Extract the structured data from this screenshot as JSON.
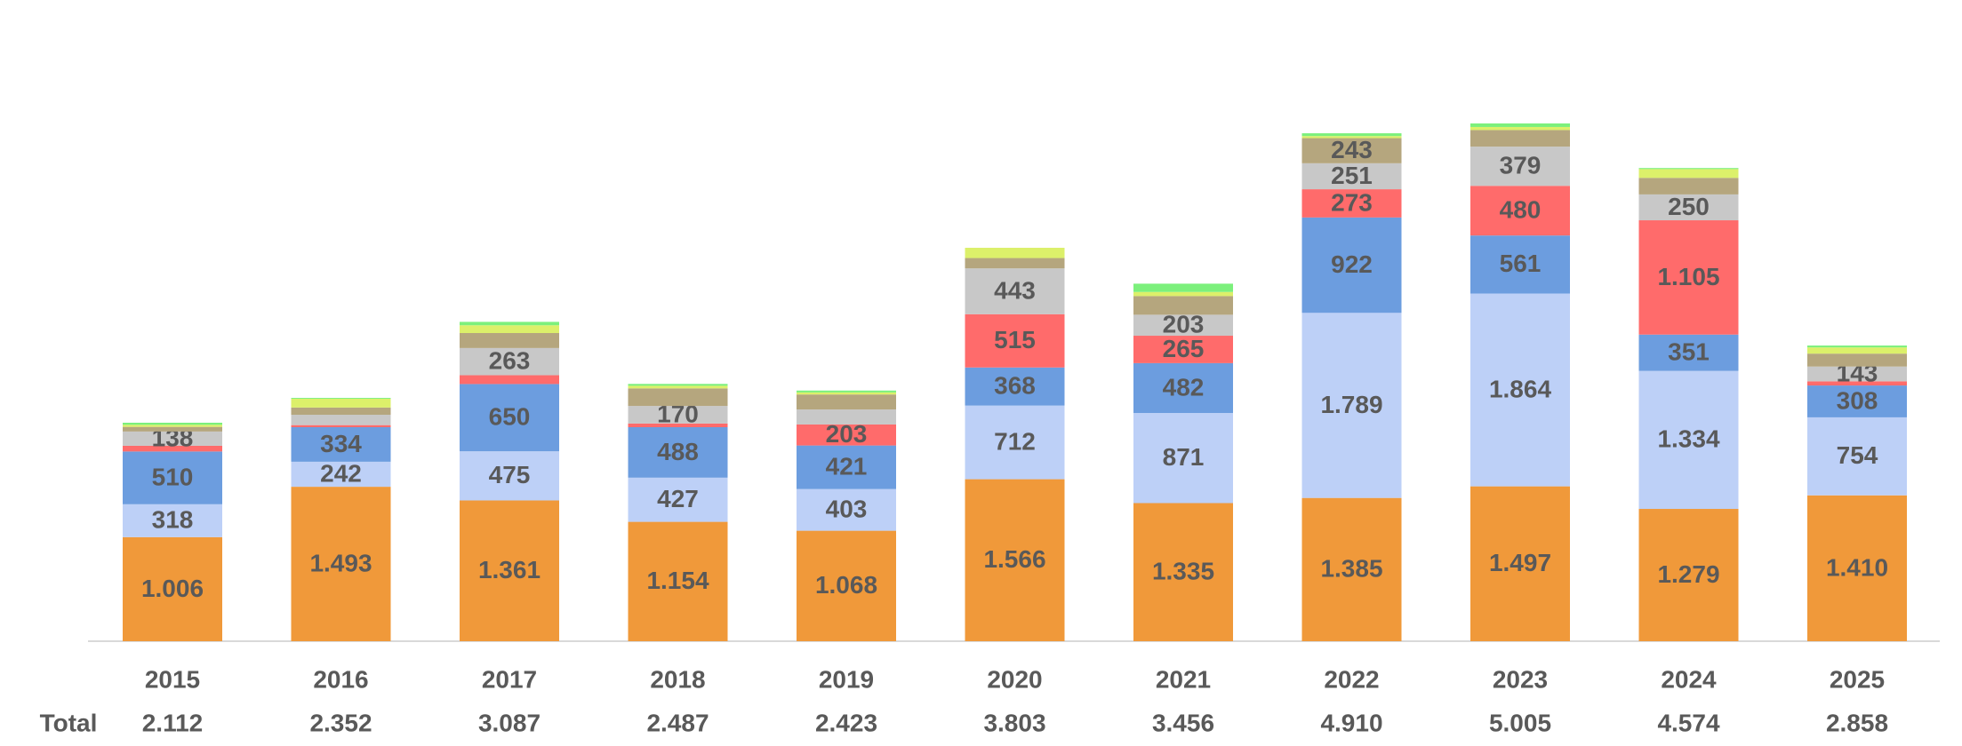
{
  "chart_data": {
    "type": "stacked-bar",
    "categories": [
      "2015",
      "2016",
      "2017",
      "2018",
      "2019",
      "2020",
      "2021",
      "2022",
      "2023",
      "2024",
      "2025"
    ],
    "series": [
      {
        "color": "#F0993A",
        "values": [
          1006,
          1493,
          1361,
          1154,
          1068,
          1566,
          1335,
          1385,
          1497,
          1279,
          1410
        ],
        "value_labels": [
          "1.006",
          "1.493",
          "1.361",
          "1.154",
          "1.068",
          "1.566",
          "1.335",
          "1.385",
          "1.497",
          "1.279",
          "1.410"
        ]
      },
      {
        "color": "#BDD0F7",
        "values": [
          318,
          242,
          475,
          427,
          403,
          712,
          871,
          1789,
          1864,
          1334,
          754
        ],
        "value_labels": [
          "318",
          "242",
          "475",
          "427",
          "403",
          "712",
          "871",
          "1.789",
          "1.864",
          "1.334",
          "754"
        ]
      },
      {
        "color": "#6C9DDF",
        "values": [
          510,
          334,
          650,
          488,
          421,
          368,
          482,
          922,
          561,
          351,
          308
        ],
        "value_labels": [
          "510",
          "334",
          "650",
          "488",
          "421",
          "368",
          "482",
          "922",
          "561",
          "351",
          "308"
        ]
      },
      {
        "color": "#FF6B6B",
        "values": [
          55,
          20,
          85,
          35,
          203,
          515,
          265,
          273,
          480,
          1105,
          40
        ],
        "value_labels": [
          null,
          null,
          null,
          null,
          "203",
          "515",
          "265",
          "273",
          "480",
          "1.105",
          null
        ]
      },
      {
        "color": "#C8C8C8",
        "values": [
          138,
          100,
          263,
          170,
          145,
          443,
          203,
          251,
          379,
          250,
          143
        ],
        "value_labels": [
          "138",
          null,
          "263",
          "170",
          null,
          "443",
          "203",
          "251",
          "379",
          "250",
          "143"
        ]
      },
      {
        "color": "#B5A67E",
        "values": [
          45,
          70,
          145,
          170,
          145,
          100,
          180,
          243,
          160,
          160,
          125
        ],
        "value_labels": [
          null,
          null,
          null,
          null,
          null,
          null,
          null,
          "243",
          null,
          null,
          null
        ]
      },
      {
        "color": "#DCF06A",
        "values": [
          20,
          85,
          75,
          25,
          20,
          99,
          40,
          20,
          30,
          85,
          60
        ]
      },
      {
        "color": "#7CF07C",
        "values": [
          20,
          8,
          33,
          18,
          18,
          0,
          80,
          27,
          34,
          10,
          18
        ]
      }
    ],
    "totals": {
      "label": "Total",
      "values": [
        2112,
        2352,
        3087,
        2487,
        2423,
        3803,
        3456,
        4910,
        5005,
        4574,
        2858
      ],
      "value_labels": [
        "2.112",
        "2.352",
        "3.087",
        "2.487",
        "2.423",
        "3.803",
        "3.456",
        "4.910",
        "5.005",
        "4.574",
        "2.858"
      ]
    }
  }
}
